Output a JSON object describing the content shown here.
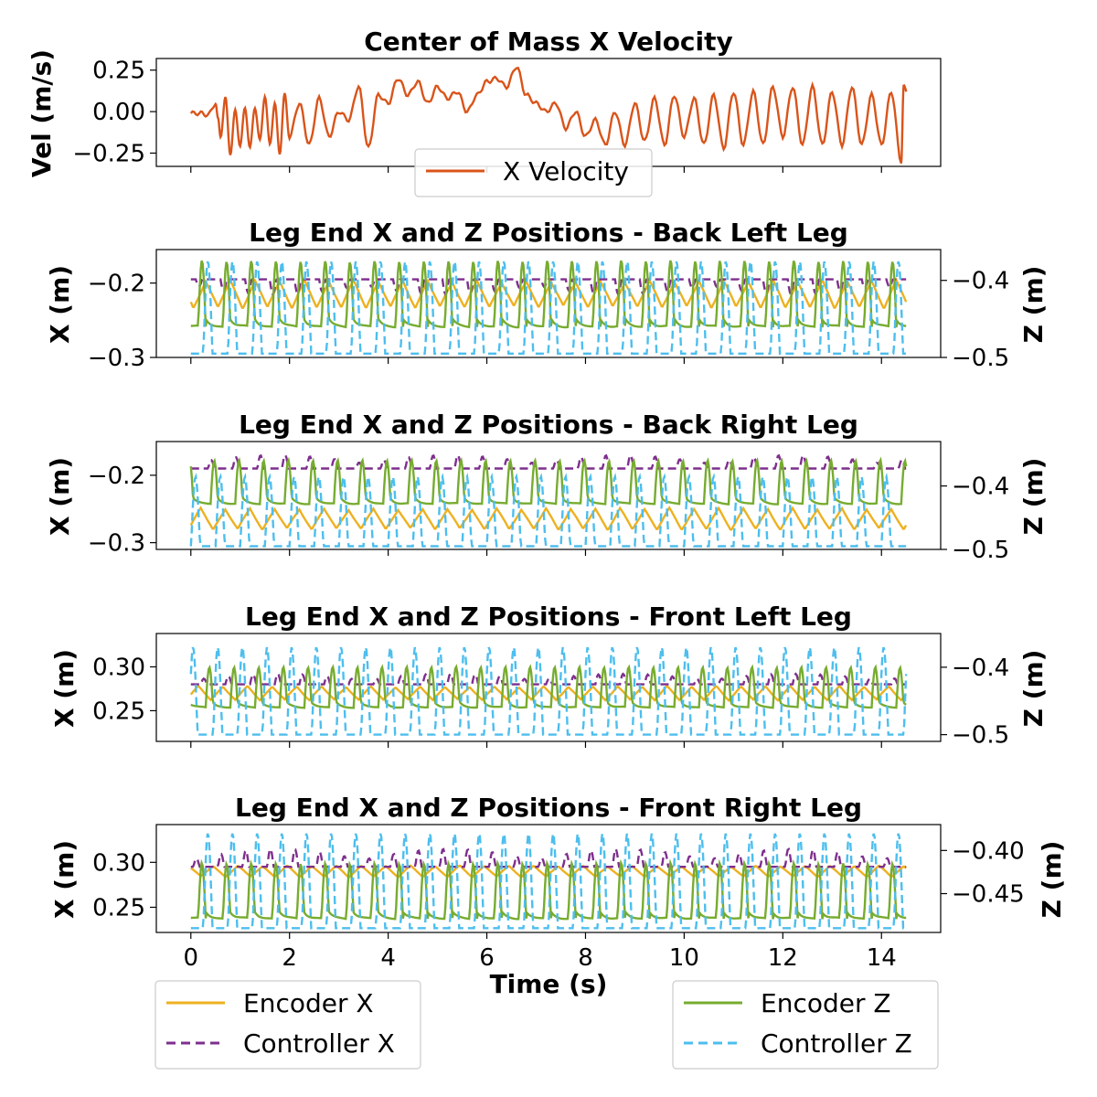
{
  "chart_data": [
    {
      "type": "line",
      "title": "Center of Mass X Velocity",
      "xlabel": "",
      "ylabel": "Vel (m/s)",
      "xlim": [
        -0.7,
        15.2
      ],
      "ylim": [
        -0.33,
        0.32
      ],
      "yticks": [
        0.25,
        0.0,
        -0.25
      ],
      "ytick_labels": [
        "0.25",
        "0.00",
        "−0.25"
      ],
      "series": [
        {
          "name": "X Velocity",
          "color": "#d9541a",
          "style": "solid",
          "x": [
            0,
            0.2,
            0.35,
            0.5,
            0.55,
            0.6,
            0.7,
            0.8,
            0.9,
            1.0,
            1.1,
            1.2,
            1.3,
            1.4,
            1.5,
            1.6,
            1.7,
            1.8,
            1.9,
            2.0,
            2.2,
            2.4,
            2.6,
            2.8,
            3.0,
            3.2,
            3.4,
            3.6,
            3.8,
            4.0,
            4.2,
            4.4,
            4.6,
            4.8,
            5.0,
            5.2,
            5.4,
            5.6,
            5.8,
            6.0,
            6.2,
            6.4,
            6.6,
            6.8,
            7.0,
            7.2,
            7.4,
            7.6,
            7.8,
            8.0,
            8.2,
            8.4,
            8.6,
            8.8,
            9.0,
            9.2,
            9.4,
            9.6,
            9.8,
            10.0,
            10.2,
            10.4,
            10.6,
            10.8,
            11.0,
            11.2,
            11.4,
            11.6,
            11.8,
            12.0,
            12.2,
            12.4,
            12.6,
            12.8,
            13.0,
            13.2,
            13.4,
            13.6,
            13.8,
            14.0,
            14.2,
            14.4,
            14.45,
            14.5
          ],
          "y": [
            -0.01,
            -0.01,
            -0.02,
            0.05,
            -0.05,
            -0.15,
            0.08,
            -0.25,
            0.0,
            -0.2,
            0.02,
            -0.22,
            0.03,
            -0.18,
            0.1,
            -0.2,
            0.05,
            -0.25,
            0.1,
            -0.15,
            0.05,
            -0.2,
            0.08,
            -0.15,
            0.0,
            -0.05,
            0.15,
            -0.22,
            0.1,
            0.05,
            0.2,
            0.1,
            0.18,
            0.05,
            0.15,
            0.08,
            0.12,
            0.0,
            0.1,
            0.18,
            0.2,
            0.15,
            0.27,
            0.1,
            0.05,
            0.0,
            0.05,
            -0.1,
            0.0,
            -0.15,
            -0.05,
            -0.2,
            0.0,
            -0.2,
            0.05,
            -0.18,
            0.08,
            -0.2,
            0.1,
            -0.15,
            0.08,
            -0.2,
            0.1,
            -0.22,
            0.12,
            -0.2,
            0.12,
            -0.2,
            0.15,
            -0.15,
            0.15,
            -0.2,
            0.15,
            -0.2,
            0.12,
            -0.2,
            0.15,
            -0.2,
            0.1,
            -0.2,
            0.12,
            -0.3,
            0.15,
            0.12
          ]
        }
      ],
      "legend": {
        "entries": [
          "X Velocity"
        ],
        "placement": "lower-center"
      }
    },
    {
      "type": "line",
      "title": "Leg End X and Z Positions - Back Left Leg",
      "xlabel": "",
      "ylabel": "X (m)",
      "ylabel_right": "Z (m)",
      "xlim": [
        -0.7,
        15.2
      ],
      "ylim": [
        -0.3,
        -0.155
      ],
      "yticks": [
        -0.2,
        -0.3
      ],
      "ytick_labels": [
        "−0.2",
        "−0.3"
      ],
      "ylim_right": [
        -0.5,
        -0.36
      ],
      "yticks_right": [
        -0.4,
        -0.5
      ],
      "ytick_labels_right": [
        "−0.4",
        "−0.5"
      ],
      "series": [
        {
          "name": "Encoder X",
          "color": "#edb120",
          "style": "solid",
          "base": -0.215,
          "amp": -0.035,
          "period": 0.5,
          "phase": 0.2,
          "duty": 0.45,
          "kind": "encx"
        },
        {
          "name": "Controller X",
          "color": "#7e2f8e",
          "style": "dashed",
          "base": -0.195,
          "amp": -0.02,
          "period": 0.5,
          "phase": 0.4,
          "kind": "ctrlx"
        },
        {
          "name": "Encoder Z",
          "color": "#77ac30",
          "style": "solid",
          "base": -0.475,
          "amp": 0.1,
          "period": 0.5,
          "phase": 0.35,
          "kind": "encz",
          "axis": "right"
        },
        {
          "name": "Controller Z",
          "color": "#4dbeee",
          "style": "dashed",
          "base": -0.495,
          "amp": 0.12,
          "period": 0.5,
          "phase": 0.25,
          "kind": "ctrlz",
          "axis": "right"
        }
      ]
    },
    {
      "type": "line",
      "title": "Leg End X and Z Positions - Back Right Leg",
      "xlabel": "",
      "ylabel": "X (m)",
      "ylabel_right": "Z (m)",
      "xlim": [
        -0.7,
        15.2
      ],
      "ylim": [
        -0.31,
        -0.15
      ],
      "yticks": [
        -0.2,
        -0.3
      ],
      "ytick_labels": [
        "−0.2",
        "−0.3"
      ],
      "ylim_right": [
        -0.5,
        -0.33
      ],
      "yticks_right": [
        -0.4,
        -0.5
      ],
      "ytick_labels_right": [
        "−0.4",
        "−0.5"
      ],
      "series": [
        {
          "name": "Encoder X",
          "color": "#edb120",
          "style": "solid",
          "base": -0.265,
          "amp": 0.03,
          "period": 0.5,
          "phase": 0.05,
          "kind": "encx"
        },
        {
          "name": "Controller X",
          "color": "#7e2f8e",
          "style": "dashed",
          "base": -0.19,
          "amp": 0.02,
          "period": 0.5,
          "phase": 0.15,
          "kind": "ctrlx"
        },
        {
          "name": "Encoder Z",
          "color": "#77ac30",
          "style": "solid",
          "base": -0.44,
          "amp": 0.08,
          "period": 0.5,
          "phase": 0.1,
          "kind": "encz",
          "axis": "right"
        },
        {
          "name": "Controller Z",
          "color": "#4dbeee",
          "style": "dashed",
          "base": -0.495,
          "amp": 0.11,
          "period": 0.5,
          "phase": 0.0,
          "kind": "ctrlz",
          "axis": "right"
        }
      ]
    },
    {
      "type": "line",
      "title": "Leg End X and Z Positions - Front Left Leg",
      "xlabel": "",
      "ylabel": "X (m)",
      "ylabel_right": "Z (m)",
      "xlim": [
        -0.7,
        15.2
      ],
      "ylim": [
        0.215,
        0.338
      ],
      "yticks": [
        0.3,
        0.25
      ],
      "ytick_labels": [
        "0.30",
        "0.25"
      ],
      "ylim_right": [
        -0.51,
        -0.35
      ],
      "yticks_right": [
        -0.4,
        -0.5
      ],
      "ytick_labels_right": [
        "−0.4",
        "−0.5"
      ],
      "series": [
        {
          "name": "Encoder X",
          "color": "#edb120",
          "style": "solid",
          "base": 0.27,
          "amp": 0.015,
          "period": 0.5,
          "phase": 0.1,
          "kind": "encx"
        },
        {
          "name": "Controller X",
          "color": "#7e2f8e",
          "style": "dashed",
          "base": 0.28,
          "amp": 0.012,
          "period": 0.5,
          "phase": 0.3,
          "kind": "ctrlx"
        },
        {
          "name": "Encoder Z",
          "color": "#77ac30",
          "style": "solid",
          "base": -0.47,
          "amp": 0.07,
          "period": 0.5,
          "phase": 0.2,
          "kind": "encz",
          "axis": "right"
        },
        {
          "name": "Controller Z",
          "color": "#4dbeee",
          "style": "dashed",
          "base": -0.5,
          "amp": 0.13,
          "period": 0.5,
          "phase": 0.05,
          "kind": "ctrlz",
          "axis": "right"
        }
      ]
    },
    {
      "type": "line",
      "title": "Leg End X and Z Positions - Front Right Leg",
      "xlabel": "Time (s)",
      "ylabel": "X (m)",
      "ylabel_right": "Z (m)",
      "xlim": [
        -0.7,
        15.2
      ],
      "ylim": [
        0.222,
        0.342
      ],
      "yticks": [
        0.3,
        0.25
      ],
      "ytick_labels": [
        "0.30",
        "0.25"
      ],
      "ylim_right": [
        -0.495,
        -0.37
      ],
      "yticks_right": [
        -0.4,
        -0.45
      ],
      "ytick_labels_right": [
        "−0.40",
        "−0.45"
      ],
      "xticks": [
        0,
        2,
        4,
        6,
        8,
        10,
        12,
        14
      ],
      "xtick_labels": [
        "0",
        "2",
        "4",
        "6",
        "8",
        "10",
        "12",
        "14"
      ],
      "series": [
        {
          "name": "Encoder X",
          "color": "#edb120",
          "style": "solid",
          "base": 0.29,
          "amp": 0.012,
          "period": 0.5,
          "phase": 0.3,
          "kind": "encx"
        },
        {
          "name": "Controller X",
          "color": "#7e2f8e",
          "style": "dashed",
          "base": 0.295,
          "amp": 0.02,
          "period": 0.5,
          "phase": 0.45,
          "kind": "ctrlx"
        },
        {
          "name": "Encoder Z",
          "color": "#77ac30",
          "style": "solid",
          "base": -0.49,
          "amp": 0.075,
          "period": 0.5,
          "phase": 0.35,
          "kind": "encz",
          "axis": "right"
        },
        {
          "name": "Controller Z",
          "color": "#4dbeee",
          "style": "dashed",
          "base": -0.49,
          "amp": 0.11,
          "period": 0.5,
          "phase": 0.25,
          "kind": "ctrlz",
          "axis": "right"
        }
      ]
    }
  ],
  "bottom_legend_left": {
    "entries": [
      "Encoder X",
      "Controller X"
    ],
    "placement": "lower-left"
  },
  "bottom_legend_right": {
    "entries": [
      "Encoder Z",
      "Controller Z"
    ],
    "placement": "lower-right"
  }
}
